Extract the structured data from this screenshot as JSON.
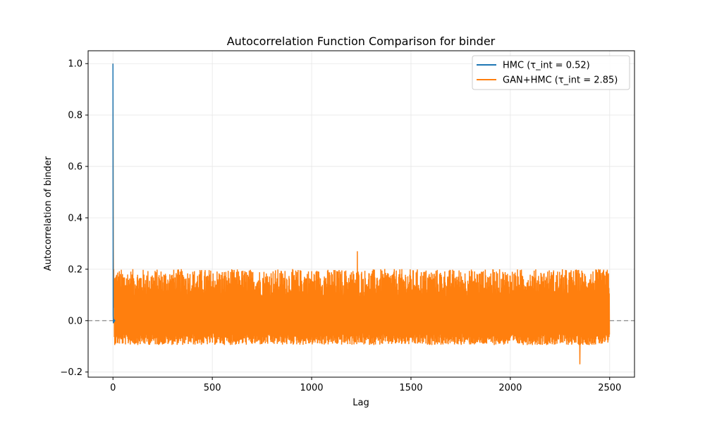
{
  "chart_data": {
    "type": "line",
    "title": "Autocorrelation Function Comparison for binder",
    "xlabel": "Lag",
    "ylabel": "Autocorrelation of binder",
    "xlim": [
      -125,
      2625
    ],
    "ylim": [
      -0.22,
      1.05
    ],
    "xticks": [
      0,
      500,
      1000,
      1500,
      2000,
      2500
    ],
    "yticks": [
      -0.2,
      0.0,
      0.2,
      0.4,
      0.6,
      0.8,
      1.0
    ],
    "xtick_labels": [
      "0",
      "500",
      "1000",
      "1500",
      "2000",
      "2500"
    ],
    "ytick_labels": [
      "−0.2",
      "0.0",
      "0.2",
      "0.4",
      "0.6",
      "0.8",
      "1.0"
    ],
    "grid": true,
    "legend_position": "top-right",
    "reference_line": {
      "y": 0.0,
      "style": "dashed",
      "color": "#888888"
    },
    "series": [
      {
        "name": "HMC (τ_int = 0.52)",
        "color": "#1f77b4",
        "x": [
          0,
          1,
          2,
          3,
          4,
          5,
          6,
          7,
          8,
          9,
          10
        ],
        "y": [
          1.0,
          0.02,
          -0.01,
          0.005,
          -0.008,
          0.003,
          -0.004,
          0.002,
          -0.003,
          0.001,
          0.0
        ]
      },
      {
        "name": "GAN+HMC (τ_int = 2.85)",
        "color": "#ff7f0e",
        "x_start": 0,
        "x_end": 2499,
        "x_step": 1,
        "head": [
          1.0,
          0.55,
          0.28,
          0.12,
          0.2,
          0.05
        ],
        "upper_envelope": 0.22,
        "lower_envelope": -0.1,
        "max_peak": {
          "x": 1230,
          "y": 0.27
        },
        "min_trough": {
          "x": 2350,
          "y": -0.17
        }
      }
    ]
  }
}
